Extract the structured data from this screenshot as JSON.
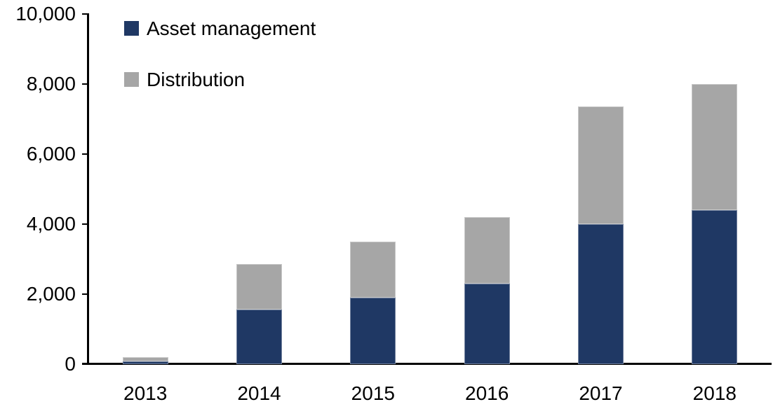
{
  "chart_data": {
    "type": "bar",
    "stacked": true,
    "title": "",
    "xlabel": "",
    "ylabel": "",
    "categories": [
      "2013",
      "2014",
      "2015",
      "2016",
      "2017",
      "2018"
    ],
    "series": [
      {
        "name": "Asset management",
        "color": "#1F3864",
        "values": [
          80,
          1550,
          1900,
          2300,
          4000,
          4400
        ]
      },
      {
        "name": "Distribution",
        "color": "#A6A6A6",
        "values": [
          110,
          1300,
          1600,
          1900,
          3350,
          3600
        ]
      }
    ],
    "totals": [
      190,
      2850,
      3500,
      4200,
      7350,
      8000
    ],
    "ylim": [
      0,
      10000
    ],
    "ytick_interval": 2000,
    "ytick_values": [
      0,
      2000,
      4000,
      6000,
      8000,
      10000
    ],
    "ytick_labels": [
      "0",
      "2,000",
      "4,000",
      "6,000",
      "8,000",
      "10,000"
    ],
    "grid": false,
    "legend_position": "top-left",
    "axis_color": "#000000",
    "text_color": "#000000",
    "background_color": "#ffffff"
  },
  "legend": {
    "items": [
      {
        "label": "Asset management",
        "color": "#1F3864"
      },
      {
        "label": "Distribution",
        "color": "#A6A6A6"
      }
    ]
  }
}
